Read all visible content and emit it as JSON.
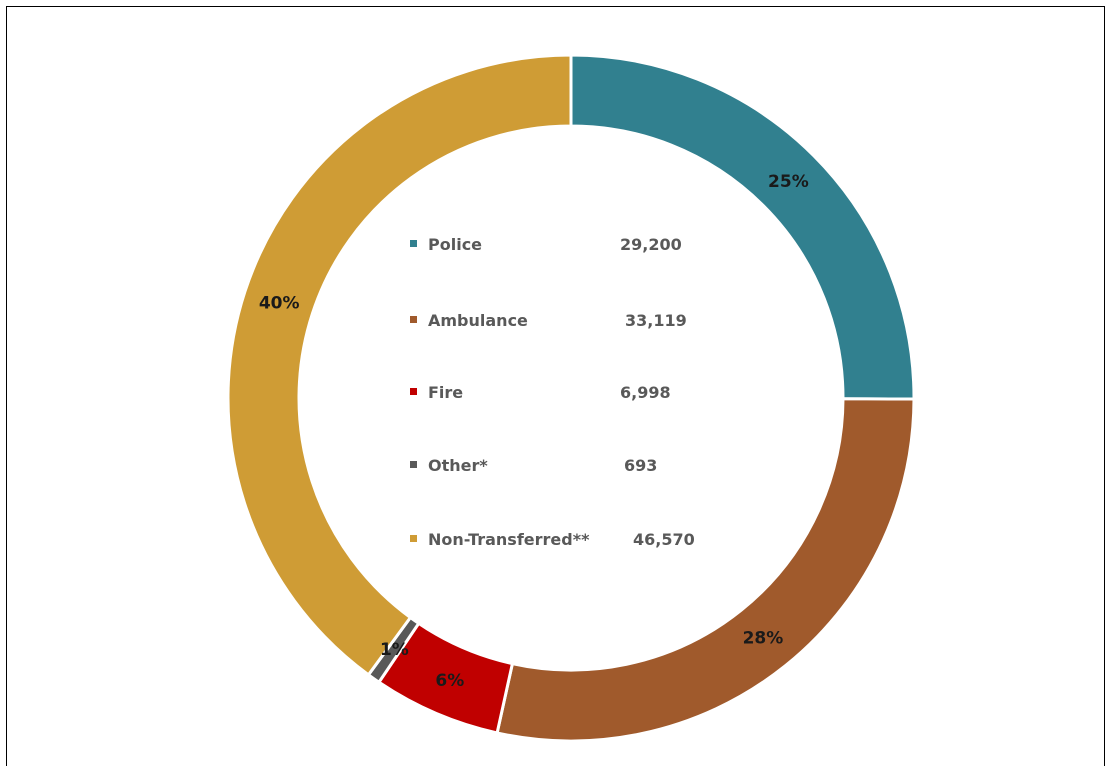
{
  "chart_data": {
    "type": "pie",
    "donut": true,
    "categories": [
      "Police",
      "Ambulance",
      "Fire",
      "Other*",
      "Non-Transferred**"
    ],
    "values": [
      29200,
      33119,
      6998,
      693,
      46570
    ],
    "value_labels": [
      "29,200",
      "33,119",
      "6,998",
      "693",
      "46,570"
    ],
    "percent_labels": [
      "25%",
      "28%",
      "6%",
      "1%",
      "40%"
    ],
    "colors": [
      "#31808F",
      "#A05A2C",
      "#C00000",
      "#595959",
      "#CF9C35"
    ],
    "legend_position": "center"
  }
}
